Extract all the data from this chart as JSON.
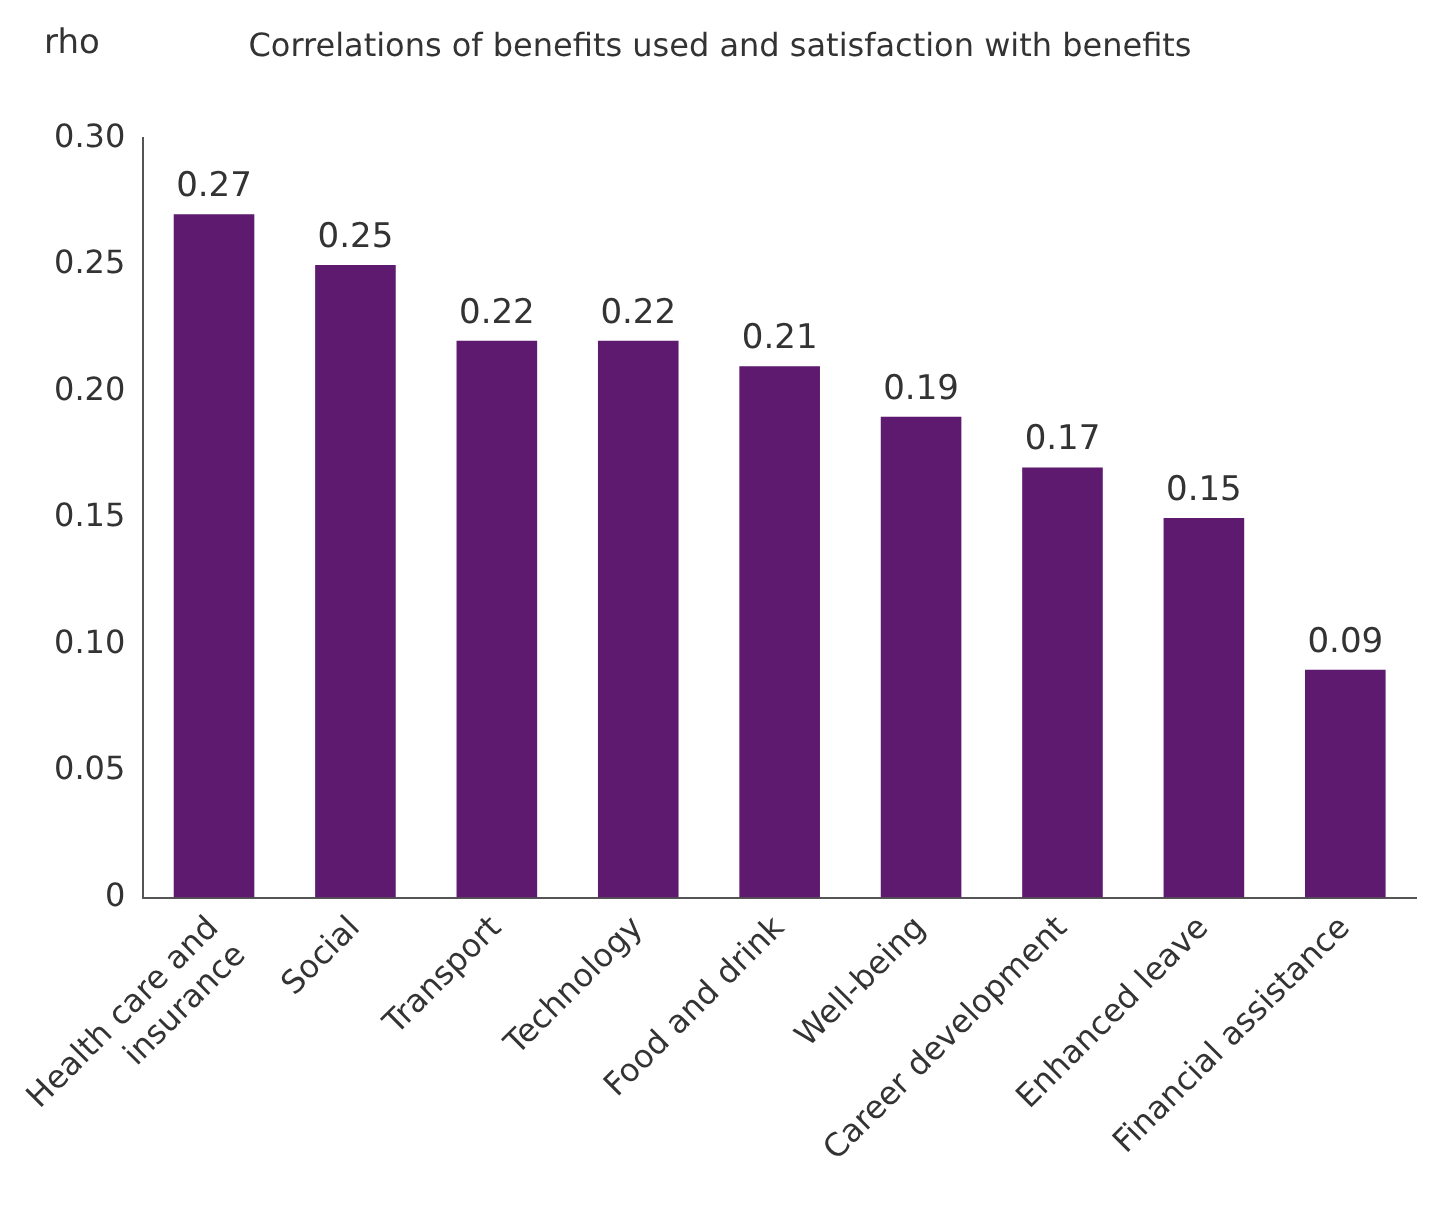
{
  "chart_data": {
    "type": "bar",
    "title": "Correlations of benefits used and satisfaction with benefits",
    "ylabel": "rho",
    "categories": [
      "Health care and insurance",
      "Social",
      "Transport",
      "Technology",
      "Food and drink",
      "Well-being",
      "Career development",
      "Enhanced leave",
      "Financial assistance"
    ],
    "values": [
      0.27,
      0.25,
      0.22,
      0.22,
      0.21,
      0.19,
      0.17,
      0.15,
      0.09
    ],
    "color": "#5e1a6e",
    "ylim": [
      0,
      0.3
    ],
    "yticks": [
      0,
      0.05,
      {
        "value": 0.1,
        "label": "0.10"
      },
      0.15,
      {
        "value": 0.2,
        "label": "0.20"
      },
      0.25,
      {
        "value": 0.3,
        "label": "0.30"
      }
    ],
    "grid": false,
    "legend": false,
    "data_labels": true
  }
}
